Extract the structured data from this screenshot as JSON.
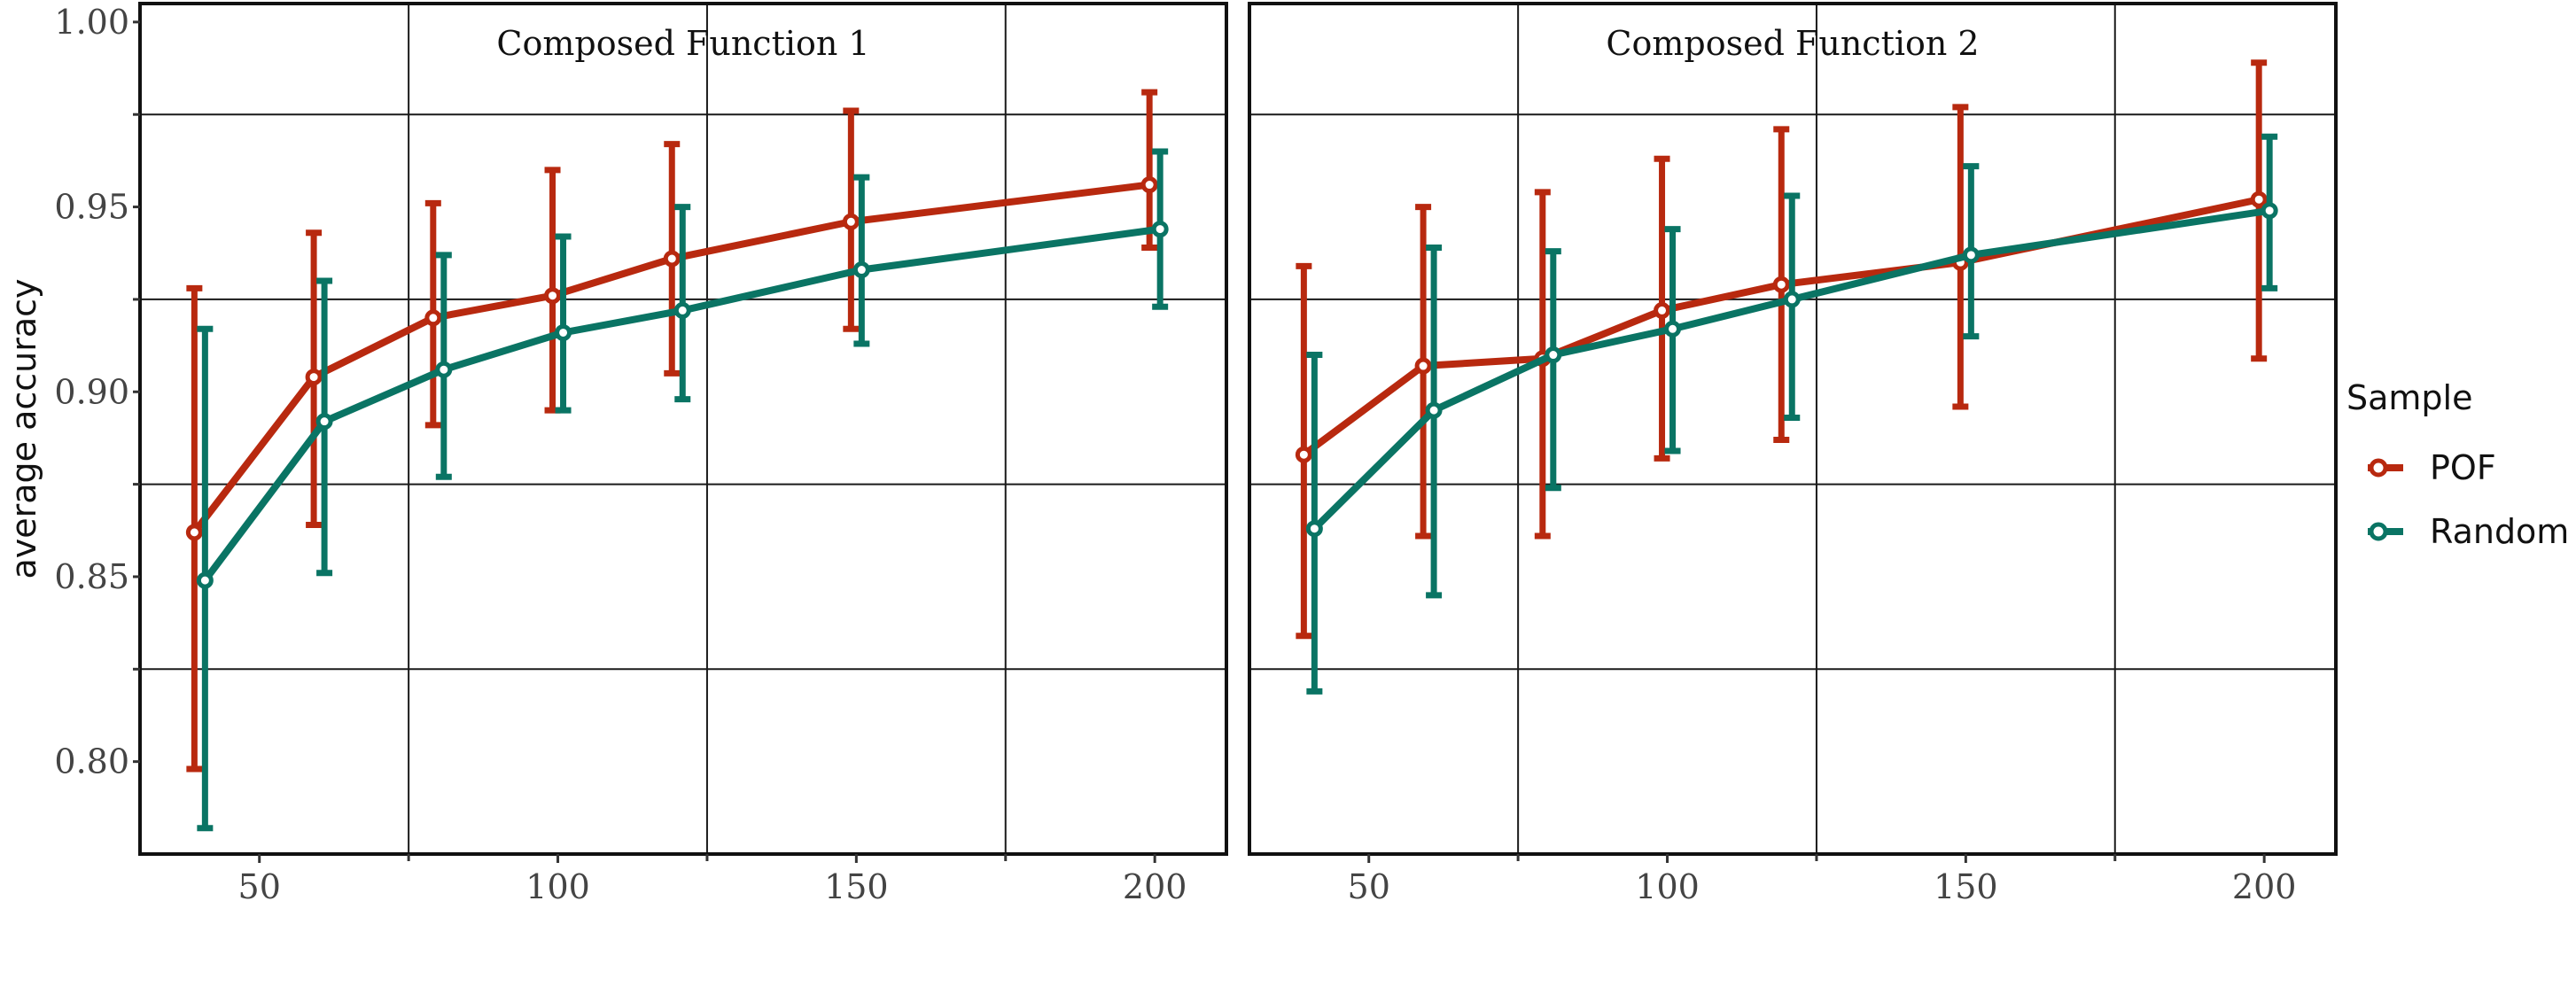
{
  "chart_data": {
    "type": "line",
    "ylabel": "average accuracy",
    "xlabel": "",
    "xlim": [
      30,
      212
    ],
    "ylim": [
      0.775,
      1.005
    ],
    "x_ticks": [
      50,
      100,
      150,
      200
    ],
    "y_ticks": [
      0.8,
      0.85,
      0.9,
      0.95,
      1.0
    ],
    "y_tick_labels": [
      "0.80",
      "0.85",
      "0.90",
      "0.95",
      "1.00"
    ],
    "x_tick_labels": [
      "50",
      "100",
      "150",
      "200"
    ],
    "grid": true,
    "legend": {
      "title": "Sample",
      "position": "right",
      "entries": [
        "POF",
        "Random"
      ]
    },
    "colors": {
      "POF": "#b8290f",
      "Random": "#0a7464"
    },
    "panels": [
      {
        "title": "Composed Function 1",
        "x": [
          40,
          60,
          80,
          100,
          120,
          150,
          200
        ],
        "series": [
          {
            "name": "POF",
            "mean": [
              0.862,
              0.904,
              0.92,
              0.926,
              0.936,
              0.946,
              0.956
            ],
            "lower": [
              0.798,
              0.864,
              0.891,
              0.895,
              0.905,
              0.917,
              0.939
            ],
            "upper": [
              0.928,
              0.943,
              0.951,
              0.96,
              0.967,
              0.976,
              0.981
            ]
          },
          {
            "name": "Random",
            "mean": [
              0.849,
              0.892,
              0.906,
              0.916,
              0.922,
              0.933,
              0.944
            ],
            "lower": [
              0.782,
              0.851,
              0.877,
              0.895,
              0.898,
              0.913,
              0.923
            ],
            "upper": [
              0.917,
              0.93,
              0.937,
              0.942,
              0.95,
              0.958,
              0.965
            ]
          }
        ]
      },
      {
        "title": "Composed Function 2",
        "x": [
          40,
          60,
          80,
          100,
          120,
          150,
          200
        ],
        "series": [
          {
            "name": "POF",
            "mean": [
              0.883,
              0.907,
              0.909,
              0.922,
              0.929,
              0.935,
              0.952
            ],
            "lower": [
              0.834,
              0.861,
              0.861,
              0.882,
              0.887,
              0.896,
              0.909
            ],
            "upper": [
              0.934,
              0.95,
              0.954,
              0.963,
              0.971,
              0.977,
              0.989
            ]
          },
          {
            "name": "Random",
            "mean": [
              0.863,
              0.895,
              0.91,
              0.917,
              0.925,
              0.937,
              0.949
            ],
            "lower": [
              0.819,
              0.845,
              0.874,
              0.884,
              0.893,
              0.915,
              0.928
            ],
            "upper": [
              0.91,
              0.939,
              0.938,
              0.944,
              0.953,
              0.961,
              0.969
            ]
          }
        ]
      }
    ]
  }
}
